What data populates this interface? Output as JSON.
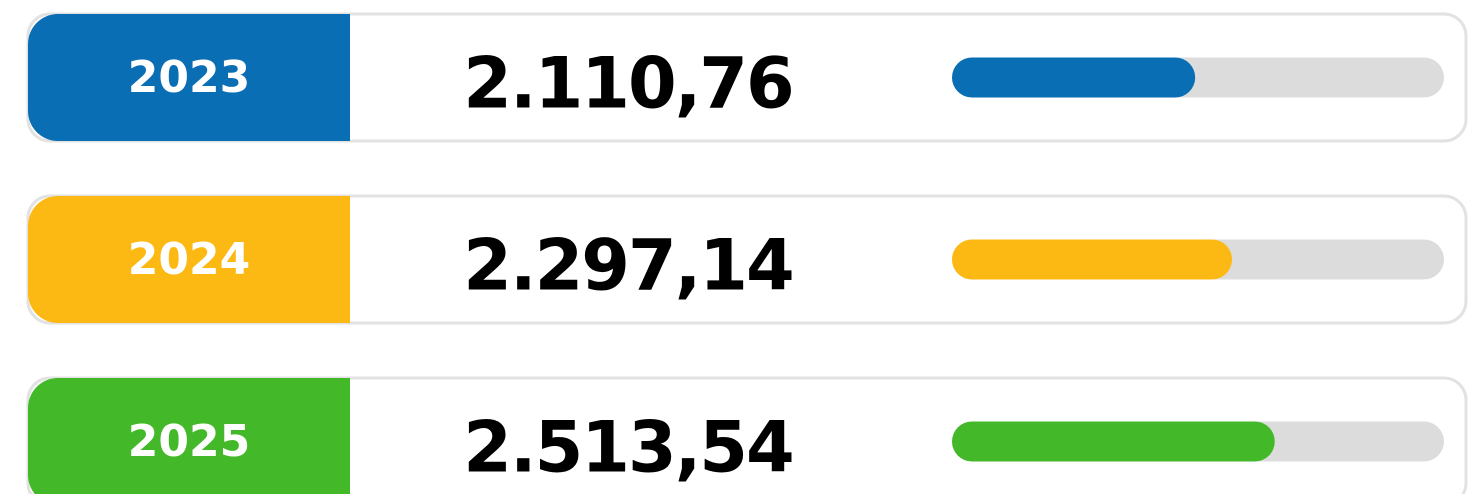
{
  "chart_data": {
    "type": "bar",
    "categories": [
      "2023",
      "2024",
      "2025"
    ],
    "values": [
      2110.76,
      2297.14,
      2513.54
    ],
    "value_labels": [
      "2.110,76",
      "2.297,14",
      "2.513,54"
    ],
    "colors": [
      "#0a6eb4",
      "#fdb913",
      "#43b828"
    ],
    "xlim": [
      880,
      3370
    ]
  }
}
